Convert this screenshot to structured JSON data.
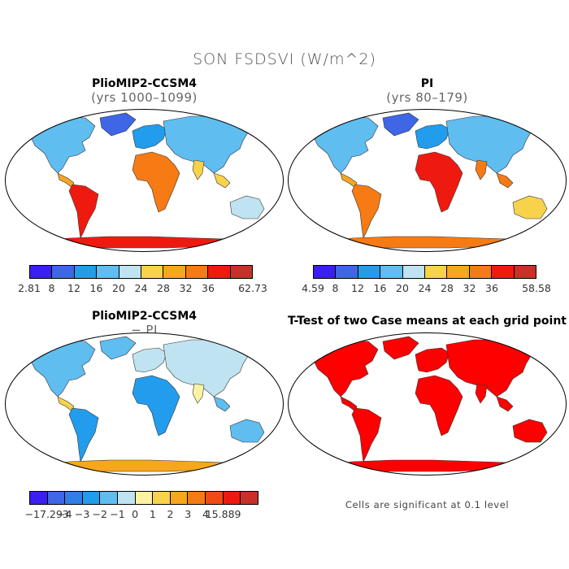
{
  "title": "SON FSDSVI (W/m^2)",
  "panels": [
    {
      "title": "PlioMIP2-CCSM4",
      "subtitle": "(yrs 1000–1099)",
      "colorbar": {
        "colors": [
          "#3b1ef2",
          "#3e66e6",
          "#229cec",
          "#5fbdf0",
          "#bfe3f0",
          "#f7d24a",
          "#f6a71d",
          "#f67b14",
          "#ee1a10",
          "#c83028"
        ],
        "labels": [
          "2.81",
          "8",
          "12",
          "16",
          "20",
          "24",
          "28",
          "32",
          "36",
          "62.73"
        ]
      }
    },
    {
      "title": "PI",
      "subtitle": "(yrs 80–179)",
      "colorbar": {
        "colors": [
          "#3b1ef2",
          "#3e66e6",
          "#229cec",
          "#5fbdf0",
          "#bfe3f0",
          "#f7d24a",
          "#f6a71d",
          "#f67b14",
          "#ee1a10",
          "#c83028"
        ],
        "labels": [
          "4.59",
          "8",
          "12",
          "16",
          "20",
          "24",
          "28",
          "32",
          "36",
          "58.58"
        ]
      }
    },
    {
      "title": "PlioMIP2-CCSM4",
      "subtitle": "− PI",
      "colorbar": {
        "colors": [
          "#3b1ef2",
          "#3e66e6",
          "#2f7fe8",
          "#229cec",
          "#5fbdf0",
          "#bfe3f0",
          "#fbf3a0",
          "#f7d24a",
          "#f6a71d",
          "#f67b14",
          "#f24b12",
          "#ee1a10",
          "#c83028"
        ],
        "labels": [
          "−17.293",
          "−4",
          "−3",
          "−2",
          "−1",
          "0",
          "1",
          "2",
          "3",
          "4",
          "15.889"
        ]
      }
    },
    {
      "title": "T-Test of two Case means at each grid point",
      "note": "Cells are significant at 0.1 level"
    }
  ],
  "colors": {
    "ocean": "#ffffff",
    "significant": "#ff0000",
    "outline": "#000000"
  }
}
